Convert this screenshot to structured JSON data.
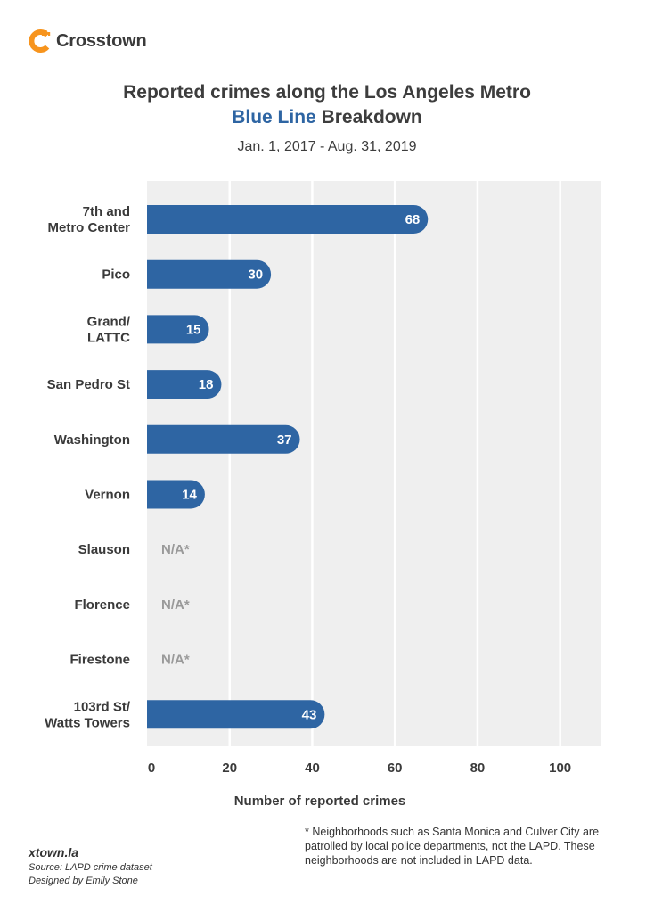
{
  "brand": {
    "name": "Crosstown",
    "logo_icon": "crosstown-logo-icon",
    "logo_color": "#f7941d"
  },
  "header": {
    "title_line1": "Reported crimes along the Los Angeles Metro",
    "title_accent": "Blue Line",
    "title_line2_rest": " Breakdown",
    "subtitle": "Jan. 1, 2017 - Aug. 31, 2019"
  },
  "chart_data": {
    "type": "bar",
    "orientation": "horizontal",
    "categories": [
      [
        "7th and",
        "Metro Center"
      ],
      [
        "Pico"
      ],
      [
        "Grand/",
        "LATTC"
      ],
      [
        "San Pedro St"
      ],
      [
        "Washington"
      ],
      [
        "Vernon"
      ],
      [
        "Slauson"
      ],
      [
        "Florence"
      ],
      [
        "Firestone"
      ],
      [
        "103rd St/",
        "Watts Towers"
      ]
    ],
    "values": [
      68,
      30,
      15,
      18,
      37,
      14,
      null,
      null,
      null,
      43
    ],
    "value_labels": [
      "68",
      "30",
      "15",
      "18",
      "37",
      "14",
      "N/A*",
      "N/A*",
      "N/A*",
      "43"
    ],
    "xlabel": "Number of reported crimes",
    "xlim": [
      0,
      110
    ],
    "xticks": [
      0,
      20,
      40,
      60,
      80,
      100
    ],
    "grid": true,
    "colors": {
      "bar": "#2e65a3",
      "plot_bg": "#efefef",
      "na_text": "#9a9a9a",
      "accent": "#2e65a3"
    }
  },
  "footer": {
    "site": "xtown.la",
    "source": "Source: LAPD crime dataset",
    "designer": "Designed by Emily Stone",
    "footnote": "* Neighborhoods such as Santa Monica and Culver City are patrolled by local police departments, not the LAPD. These neighborhoods are not included in LAPD data."
  }
}
